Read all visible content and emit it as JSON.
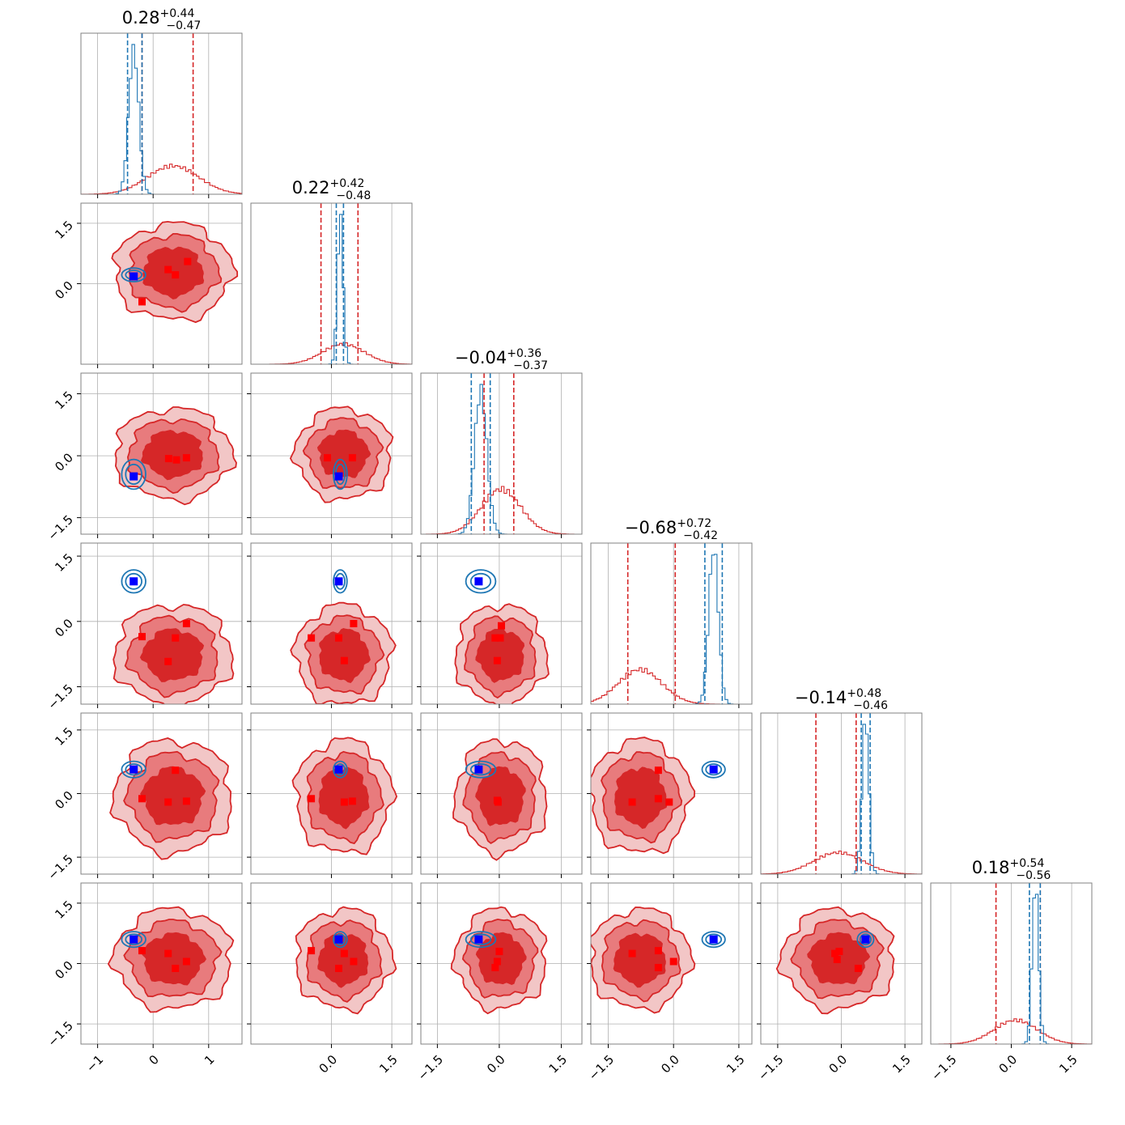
{
  "chart_data": {
    "type": "corner",
    "n_params": 6,
    "colors": {
      "red": "#d62728",
      "blue": "#1f77b4",
      "marker_blue": "#0000ff",
      "marker_red": "#ff0000"
    },
    "grid": true,
    "titles": [
      {
        "median": "0.28",
        "plus": "+0.44",
        "minus": "−0.47"
      },
      {
        "median": "0.22",
        "plus": "+0.42",
        "minus": "−0.48"
      },
      {
        "median": "−0.04",
        "plus": "+0.36",
        "minus": "−0.37"
      },
      {
        "median": "−0.68",
        "plus": "+0.72",
        "minus": "−0.42"
      },
      {
        "median": "−0.14",
        "plus": "+0.48",
        "minus": "−0.46"
      },
      {
        "median": "0.18",
        "plus": "+0.54",
        "minus": "−0.56"
      }
    ],
    "ranges": [
      [
        -1.3,
        1.6
      ],
      [
        -2.0,
        2.0
      ],
      [
        -1.9,
        2.0
      ],
      [
        -1.9,
        1.8
      ],
      [
        -1.9,
        1.9
      ],
      [
        -2.0,
        2.0
      ]
    ],
    "bottom_tick_values": [
      [
        -1,
        0,
        1
      ],
      [
        0.0,
        1.5
      ],
      [
        -1.5,
        0.0,
        1.5
      ],
      [
        -1.5,
        0.0,
        1.5
      ],
      [
        -1.5,
        0.0,
        1.5
      ],
      [
        -1.5,
        0.0,
        1.5
      ]
    ],
    "bottom_tick_labels": [
      [
        "−1",
        "0",
        "1"
      ],
      [
        "0.0",
        "1.5"
      ],
      [
        "−1.5",
        "0.0",
        "1.5"
      ],
      [
        "−1.5",
        "0.0",
        "1.5"
      ],
      [
        "−1.5",
        "0.0",
        "1.5"
      ],
      [
        "−1.5",
        "0.0",
        "1.5"
      ]
    ],
    "left_tick_values": [
      [],
      [
        0.0,
        1.5
      ],
      [
        -1.5,
        0.0,
        1.5
      ],
      [
        -1.5,
        0.0,
        1.5
      ],
      [
        -1.5,
        0.0,
        1.5
      ],
      [
        -1.5,
        0.0,
        1.5
      ]
    ],
    "left_tick_labels": [
      [],
      [
        "0.0",
        "1.5"
      ],
      [
        "−1.5",
        "0.0",
        "1.5"
      ],
      [
        "−1.5",
        "0.0",
        "1.5"
      ],
      [
        "−1.5",
        "0.0",
        "1.5"
      ],
      [
        "−1.5",
        "0.0",
        "1.5"
      ]
    ],
    "red_posterior": {
      "mean": [
        0.36,
        0.3,
        0.04,
        -0.77,
        -0.07,
        0.11
      ],
      "sd": [
        0.46,
        0.52,
        0.48,
        0.5,
        0.58,
        0.54
      ],
      "quantiles": [
        [
          -0.2,
          0.72
        ],
        [
          -0.26,
          0.66
        ],
        [
          -0.37,
          0.35
        ],
        [
          -1.05,
          0.04
        ],
        [
          -0.6,
          0.35
        ],
        [
          -0.38,
          0.72
        ]
      ]
    },
    "blue_posterior": {
      "mean": [
        -0.35,
        0.22,
        -0.45,
        0.92,
        0.57,
        0.6
      ],
      "sd": [
        0.09,
        0.07,
        0.15,
        0.11,
        0.08,
        0.08
      ],
      "quantiles": [
        [
          -0.46,
          -0.2
        ],
        [
          0.12,
          0.3
        ],
        [
          -0.68,
          -0.22
        ],
        [
          0.72,
          1.12
        ],
        [
          0.47,
          0.68
        ],
        [
          0.45,
          0.72
        ]
      ]
    },
    "truth_point": [
      -0.35,
      0.18,
      -0.5,
      0.92,
      0.57,
      0.6
    ],
    "red_markers": [
      {
        "i": 0,
        "j": 1,
        "points": [
          [
            0.62,
            0.55
          ],
          [
            0.27,
            0.35
          ],
          [
            0.4,
            0.22
          ],
          [
            -0.2,
            -0.45
          ]
        ]
      },
      {
        "i": 0,
        "j": 2,
        "points": [
          [
            0.28,
            -0.07
          ],
          [
            0.42,
            -0.1
          ],
          [
            0.6,
            -0.05
          ]
        ]
      },
      {
        "i": 1,
        "j": 2,
        "points": [
          [
            -0.1,
            -0.05
          ],
          [
            0.52,
            -0.05
          ]
        ]
      },
      {
        "i": 0,
        "j": 3,
        "points": [
          [
            0.6,
            -0.05
          ],
          [
            -0.2,
            -0.35
          ],
          [
            0.4,
            -0.38
          ],
          [
            0.27,
            -0.92
          ]
        ]
      },
      {
        "i": 1,
        "j": 3,
        "points": [
          [
            0.55,
            -0.05
          ],
          [
            -0.5,
            -0.38
          ],
          [
            0.18,
            -0.38
          ],
          [
            0.32,
            -0.9
          ]
        ]
      },
      {
        "i": 2,
        "j": 3,
        "points": [
          [
            0.05,
            -0.1
          ],
          [
            -0.1,
            -0.38
          ],
          [
            0.02,
            -0.38
          ],
          [
            -0.05,
            -0.9
          ]
        ]
      },
      {
        "i": 0,
        "j": 4,
        "points": [
          [
            0.4,
            0.55
          ],
          [
            -0.2,
            -0.12
          ],
          [
            0.27,
            -0.2
          ],
          [
            0.6,
            -0.18
          ]
        ]
      },
      {
        "i": 1,
        "j": 4,
        "points": [
          [
            -0.5,
            -0.12
          ],
          [
            0.32,
            -0.2
          ],
          [
            0.52,
            -0.18
          ]
        ]
      },
      {
        "i": 2,
        "j": 4,
        "points": [
          [
            -0.05,
            -0.16
          ],
          [
            -0.03,
            -0.2
          ]
        ]
      },
      {
        "i": 3,
        "j": 4,
        "points": [
          [
            -0.35,
            0.55
          ],
          [
            -0.95,
            -0.2
          ],
          [
            -0.35,
            -0.12
          ],
          [
            -0.1,
            -0.2
          ]
        ]
      },
      {
        "i": 0,
        "j": 5,
        "points": [
          [
            -0.2,
            0.32
          ],
          [
            0.27,
            0.25
          ],
          [
            0.6,
            0.05
          ],
          [
            0.4,
            -0.12
          ]
        ]
      },
      {
        "i": 1,
        "j": 5,
        "points": [
          [
            -0.5,
            0.32
          ],
          [
            0.32,
            0.25
          ],
          [
            0.55,
            0.05
          ],
          [
            0.18,
            -0.12
          ]
        ]
      },
      {
        "i": 2,
        "j": 5,
        "points": [
          [
            0.0,
            0.3
          ],
          [
            -0.05,
            0.05
          ],
          [
            -0.1,
            -0.1
          ]
        ]
      },
      {
        "i": 3,
        "j": 5,
        "points": [
          [
            -0.95,
            0.25
          ],
          [
            -0.35,
            0.32
          ],
          [
            -0.35,
            -0.1
          ],
          [
            0.0,
            0.05
          ]
        ]
      },
      {
        "i": 4,
        "j": 5,
        "points": [
          [
            -0.05,
            0.3
          ],
          [
            -0.15,
            0.25
          ],
          [
            -0.1,
            0.1
          ],
          [
            0.4,
            -0.12
          ]
        ]
      }
    ]
  }
}
